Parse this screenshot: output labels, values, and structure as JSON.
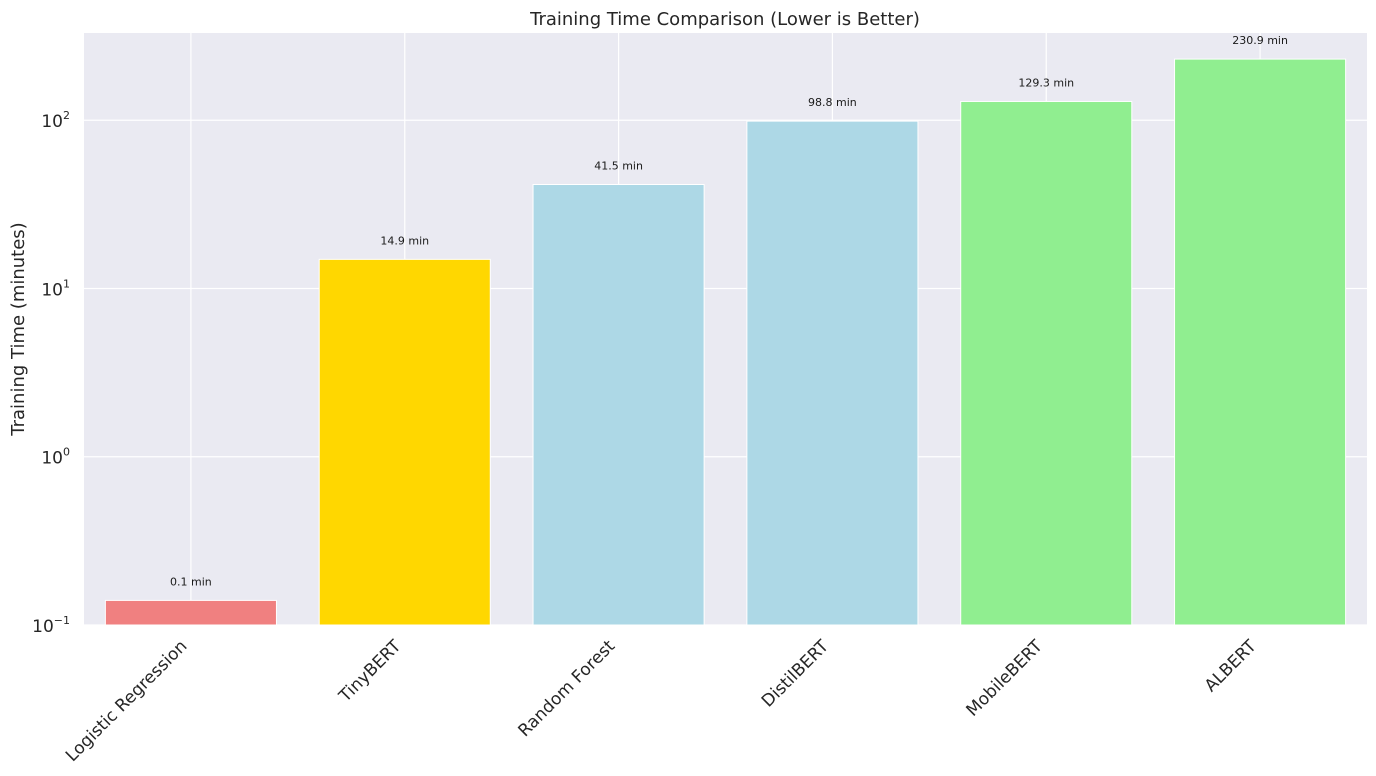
{
  "chart_data": {
    "type": "bar",
    "title": "Training Time Comparison (Lower is Better)",
    "xlabel": "",
    "ylabel": "Training Time (minutes)",
    "yscale": "log",
    "ylim": [
      0.1,
      330
    ],
    "yticks": [
      {
        "value": 0.1,
        "base": "10",
        "exp": "−1"
      },
      {
        "value": 1,
        "base": "10",
        "exp": "0"
      },
      {
        "value": 10,
        "base": "10",
        "exp": "1"
      },
      {
        "value": 100,
        "base": "10",
        "exp": "2"
      }
    ],
    "categories": [
      "Logistic Regression",
      "TinyBERT",
      "Random Forest",
      "DistilBERT",
      "MobileBERT",
      "ALBERT"
    ],
    "values": [
      0.14,
      14.9,
      41.5,
      98.8,
      129.3,
      230.9
    ],
    "value_labels": [
      "0.1 min",
      "14.9 min",
      "41.5 min",
      "98.8 min",
      "129.3 min",
      "230.9 min"
    ],
    "bar_colors": [
      "#F08080",
      "#FFD700",
      "#ADD8E6",
      "#ADD8E6",
      "#90EE90",
      "#90EE90"
    ],
    "grid": true,
    "background": "#EAEAF2",
    "grid_color": "#FFFFFF"
  }
}
